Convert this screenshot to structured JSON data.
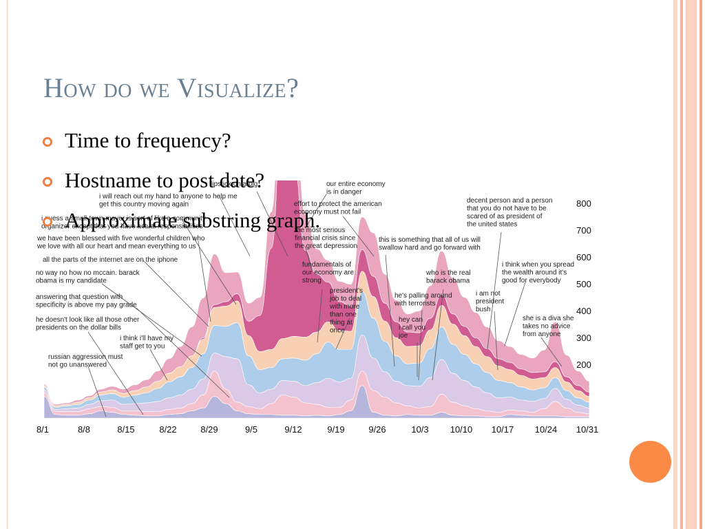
{
  "slide": {
    "title": "How do we Visualize?",
    "bullets": [
      {
        "text": "Time to frequency?"
      },
      {
        "text": "Hostname to post date?"
      },
      {
        "text": "Approximate substring graph."
      }
    ]
  },
  "colors": {
    "title": "#6b7f92",
    "accent": "#f07e45",
    "dot": "#fb8a46"
  },
  "chart_data": {
    "type": "area",
    "x_ticks": [
      "8/1",
      "8/8",
      "8/15",
      "8/22",
      "8/29",
      "9/5",
      "9/12",
      "9/19",
      "9/26",
      "10/3",
      "10/10",
      "10/17",
      "10/24",
      "10/31"
    ],
    "y_ticks": [
      "800",
      "700",
      "600",
      "500",
      "400",
      "300",
      "200"
    ],
    "annotations": [
      {
        "lines": [
          "i will reach out my hand to anyone to help me",
          "get this country moving again"
        ]
      },
      {
        "lines": [
          "i guess a small-town mayor is sort of like a community",
          "organizer except that you have actual responsibilities"
        ]
      },
      {
        "lines": [
          "we have been blessed with five wonderful children who",
          "we love with all our heart and mean everything to us"
        ]
      },
      {
        "lines": [
          "all the parts of the internet are on the iphone"
        ]
      },
      {
        "lines": [
          "no way no how no mccain. barack",
          "obama is my candidate"
        ]
      },
      {
        "lines": [
          "answering that question with",
          "specificity is above my pay grade"
        ]
      },
      {
        "lines": [
          "he doesn't look like all those other",
          "presidents on the dollar bills"
        ]
      },
      {
        "lines": [
          "i think i'll have my",
          "staff get to you"
        ]
      },
      {
        "lines": [
          "russian aggression must",
          "not go unanswered"
        ]
      },
      {
        "lines": [
          "lipstick on a pig"
        ]
      },
      {
        "lines": [
          "our entire economy",
          "is in danger"
        ]
      },
      {
        "lines": [
          "effort to protect the american",
          "economy must not fail"
        ]
      },
      {
        "lines": [
          "the most serious",
          "financial crisis since",
          "the great depression"
        ]
      },
      {
        "lines": [
          "fundamentals of",
          "our economy are",
          "strong"
        ]
      },
      {
        "lines": [
          "president's",
          "job to deal",
          "with more",
          "than one",
          "thing at",
          "once"
        ]
      },
      {
        "lines": [
          "this is something that all of us will",
          "swallow hard and go forward with"
        ]
      },
      {
        "lines": [
          "decent person and a person",
          "that you do not have to be",
          "scared of as president of",
          "the united states"
        ]
      },
      {
        "lines": [
          "who is the real",
          "barack obama"
        ]
      },
      {
        "lines": [
          "he's palling around",
          "with terrorists"
        ]
      },
      {
        "lines": [
          "hey can",
          "i call you",
          "joe"
        ]
      },
      {
        "lines": [
          "i am not",
          "president",
          "bush"
        ]
      },
      {
        "lines": [
          "i think when you spread",
          "the wealth around it's",
          "good for everybody"
        ]
      },
      {
        "lines": [
          "she is a diva she",
          "takes no advice",
          "from anyone"
        ]
      }
    ],
    "layers": [
      {
        "color": "#a9a8d6",
        "values": [
          0.3,
          0.05,
          0.04,
          0.04,
          0.06,
          0.1,
          0.08,
          0.05,
          0.04,
          0.03,
          0.03,
          0.05,
          0.06,
          0.1,
          0.14,
          0.3,
          0.2,
          0.1,
          0.06,
          0.05,
          0.05,
          0.04,
          0.04,
          0.03,
          0.04,
          0.03,
          0.05,
          0.1,
          0.45,
          0.08,
          0.04,
          0.03,
          0.05,
          0.04,
          0.04,
          0.08,
          0.04,
          0.03,
          0.03,
          0.02,
          0.02,
          0.05,
          0.04,
          0.03,
          0.03,
          0.03,
          0.02,
          0.02,
          0.02
        ]
      },
      {
        "color": "#f2b6c6",
        "values": [
          0.05,
          0.04,
          0.05,
          0.05,
          0.07,
          0.06,
          0.07,
          0.05,
          0.06,
          0.06,
          0.06,
          0.07,
          0.08,
          0.1,
          0.18,
          0.35,
          0.2,
          0.12,
          0.1,
          0.08,
          0.15,
          0.28,
          0.25,
          0.18,
          0.15,
          0.12,
          0.1,
          0.15,
          0.2,
          0.3,
          0.25,
          0.18,
          0.12,
          0.1,
          0.12,
          0.25,
          0.18,
          0.14,
          0.1,
          0.08,
          0.06,
          0.06,
          0.06,
          0.05,
          0.1,
          0.2,
          0.12,
          0.06,
          0.04
        ]
      },
      {
        "color": "#d3bfe3",
        "values": [
          0.04,
          0.03,
          0.04,
          0.05,
          0.06,
          0.08,
          0.1,
          0.09,
          0.1,
          0.12,
          0.14,
          0.16,
          0.18,
          0.2,
          0.22,
          0.25,
          0.45,
          0.6,
          0.3,
          0.22,
          0.2,
          0.2,
          0.22,
          0.24,
          0.3,
          0.4,
          0.35,
          0.3,
          0.5,
          0.45,
          0.35,
          0.3,
          0.28,
          0.3,
          0.4,
          0.48,
          0.4,
          0.35,
          0.3,
          0.25,
          0.2,
          0.18,
          0.15,
          0.15,
          0.14,
          0.18,
          0.12,
          0.1,
          0.08
        ]
      },
      {
        "color": "#9fc4e6",
        "values": [
          0.04,
          0.03,
          0.04,
          0.05,
          0.06,
          0.08,
          0.09,
          0.1,
          0.12,
          0.14,
          0.18,
          0.22,
          0.25,
          0.3,
          0.35,
          0.38,
          0.42,
          0.5,
          0.4,
          0.32,
          0.3,
          0.3,
          0.32,
          0.35,
          0.4,
          0.5,
          0.45,
          0.4,
          0.6,
          0.55,
          0.42,
          0.35,
          0.3,
          0.32,
          0.4,
          0.45,
          0.4,
          0.36,
          0.32,
          0.28,
          0.24,
          0.2,
          0.18,
          0.16,
          0.15,
          0.15,
          0.12,
          0.1,
          0.08
        ]
      },
      {
        "color": "#f7c9a8",
        "values": [
          0.02,
          0.02,
          0.02,
          0.03,
          0.03,
          0.04,
          0.05,
          0.05,
          0.06,
          0.08,
          0.1,
          0.12,
          0.14,
          0.16,
          0.2,
          0.25,
          0.28,
          0.3,
          0.28,
          0.25,
          0.25,
          0.28,
          0.3,
          0.32,
          0.3,
          0.28,
          0.26,
          0.25,
          0.28,
          0.3,
          0.28,
          0.25,
          0.24,
          0.24,
          0.26,
          0.3,
          0.28,
          0.26,
          0.24,
          0.22,
          0.2,
          0.18,
          0.16,
          0.15,
          0.14,
          0.14,
          0.12,
          0.1,
          0.08
        ]
      },
      {
        "color": "#c93f7f",
        "values": [
          0.0,
          0.0,
          0.0,
          0.0,
          0.0,
          0.0,
          0.0,
          0.0,
          0.0,
          0.0,
          0.0,
          0.0,
          0.0,
          0.0,
          0.02,
          0.04,
          0.06,
          0.1,
          0.2,
          0.5,
          1.4,
          3.2,
          2.4,
          1.2,
          0.8,
          0.55,
          0.4,
          0.35,
          0.3,
          0.28,
          0.25,
          0.22,
          0.2,
          0.18,
          0.16,
          0.15,
          0.14,
          0.13,
          0.12,
          0.11,
          0.1,
          0.1,
          0.09,
          0.09,
          0.08,
          0.08,
          0.07,
          0.07,
          0.06
        ]
      },
      {
        "color": "#e695b4",
        "values": [
          0.02,
          0.02,
          0.02,
          0.03,
          0.03,
          0.04,
          0.05,
          0.06,
          0.08,
          0.1,
          0.14,
          0.2,
          0.28,
          0.4,
          0.55,
          0.7,
          0.4,
          0.3,
          0.25,
          0.25,
          0.5,
          1.0,
          0.8,
          0.5,
          0.35,
          0.3,
          0.28,
          0.3,
          0.45,
          0.6,
          0.4,
          0.3,
          0.25,
          0.3,
          0.45,
          0.6,
          0.5,
          0.4,
          0.35,
          0.3,
          0.25,
          0.22,
          0.2,
          0.2,
          0.3,
          0.55,
          0.3,
          0.2,
          0.15
        ]
      }
    ]
  }
}
